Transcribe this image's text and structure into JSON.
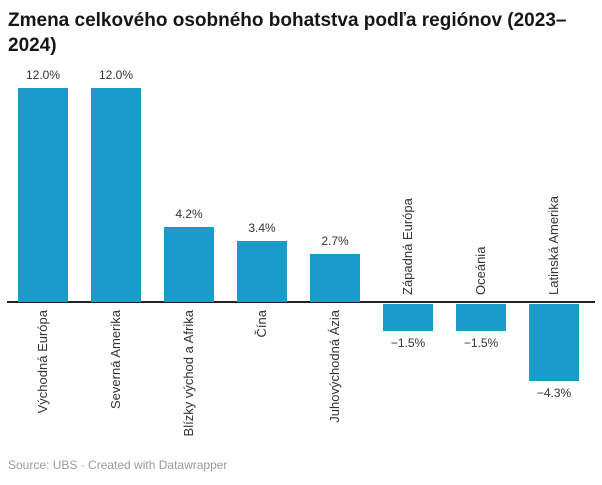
{
  "title": "Zmena celkového osobného bohatstva podľa regiónov (2023–2024)",
  "footer": "Source: UBS · Created with Datawrapper",
  "colors": {
    "bar": "#1a9bc9",
    "axis": "#222222",
    "title": "#161616",
    "label": "#333333",
    "footer": "#9b9b9b"
  },
  "chart_data": {
    "type": "bar",
    "title": "Zmena celkového osobného bohatstva podľa regiónov (2023–2024)",
    "categories": [
      "Východná Európa",
      "Severná Amerika",
      "Blízky východ a Afrika",
      "Čína",
      "Juhovýchodná Ázia",
      "Západná Európa",
      "Oceánia",
      "Latinská Amerika"
    ],
    "values": [
      12.0,
      12.0,
      4.2,
      3.4,
      2.7,
      -1.5,
      -1.5,
      -4.3
    ],
    "value_labels": [
      "12.0%",
      "12.0%",
      "4.2%",
      "3.4%",
      "2.7%",
      "−1.5%",
      "−1.5%",
      "−4.3%"
    ],
    "unit": "%",
    "ylim": [
      -5,
      13
    ],
    "grid": false,
    "legend": "none",
    "category_label_rotation": "vertical",
    "source": "UBS"
  }
}
